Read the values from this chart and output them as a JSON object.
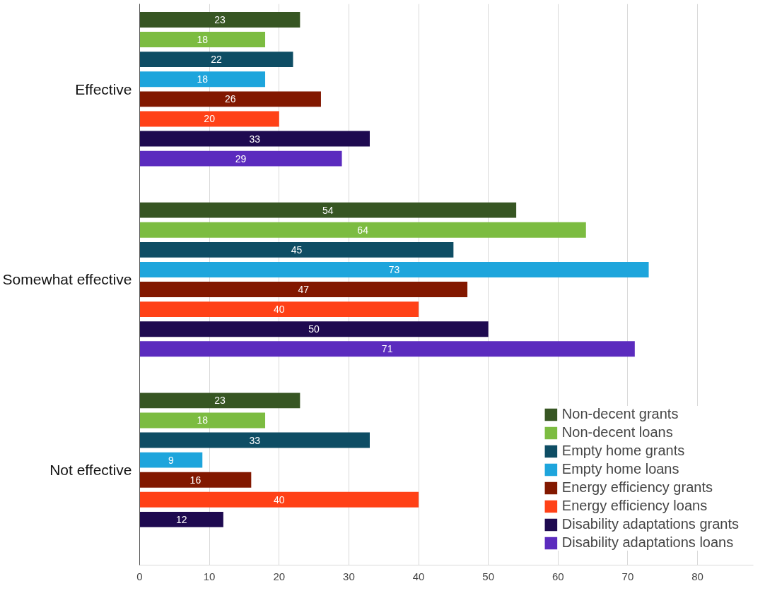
{
  "chart_data": {
    "type": "bar",
    "orientation": "horizontal",
    "categories": [
      "Effective",
      "Somewhat effective",
      "Not effective"
    ],
    "series": [
      {
        "name": "Non-decent grants",
        "color": "#375623",
        "values": [
          23,
          54,
          23
        ]
      },
      {
        "name": "Non-decent loans",
        "color": "#7cbc41",
        "values": [
          18,
          64,
          18
        ]
      },
      {
        "name": "Empty home grants",
        "color": "#0e4d64",
        "values": [
          22,
          45,
          33
        ]
      },
      {
        "name": "Empty home loans",
        "color": "#1ea5dc",
        "values": [
          18,
          73,
          9
        ]
      },
      {
        "name": "Energy efficiency grants",
        "color": "#821800",
        "values": [
          26,
          47,
          16
        ]
      },
      {
        "name": "Energy efficiency loans",
        "color": "#ff4117",
        "values": [
          20,
          40,
          40
        ]
      },
      {
        "name": "Disability adaptations grants",
        "color": "#1e0a50",
        "values": [
          33,
          50,
          12
        ]
      },
      {
        "name": "Disability adaptations loans",
        "color": "#5b2bbe",
        "values": [
          29,
          71,
          null
        ]
      }
    ],
    "xlim": [
      0,
      88
    ],
    "xticks": [
      0,
      10,
      20,
      30,
      40,
      50,
      60,
      70,
      80
    ],
    "grid": "x",
    "legend": "bottom right",
    "data_labels": true
  }
}
